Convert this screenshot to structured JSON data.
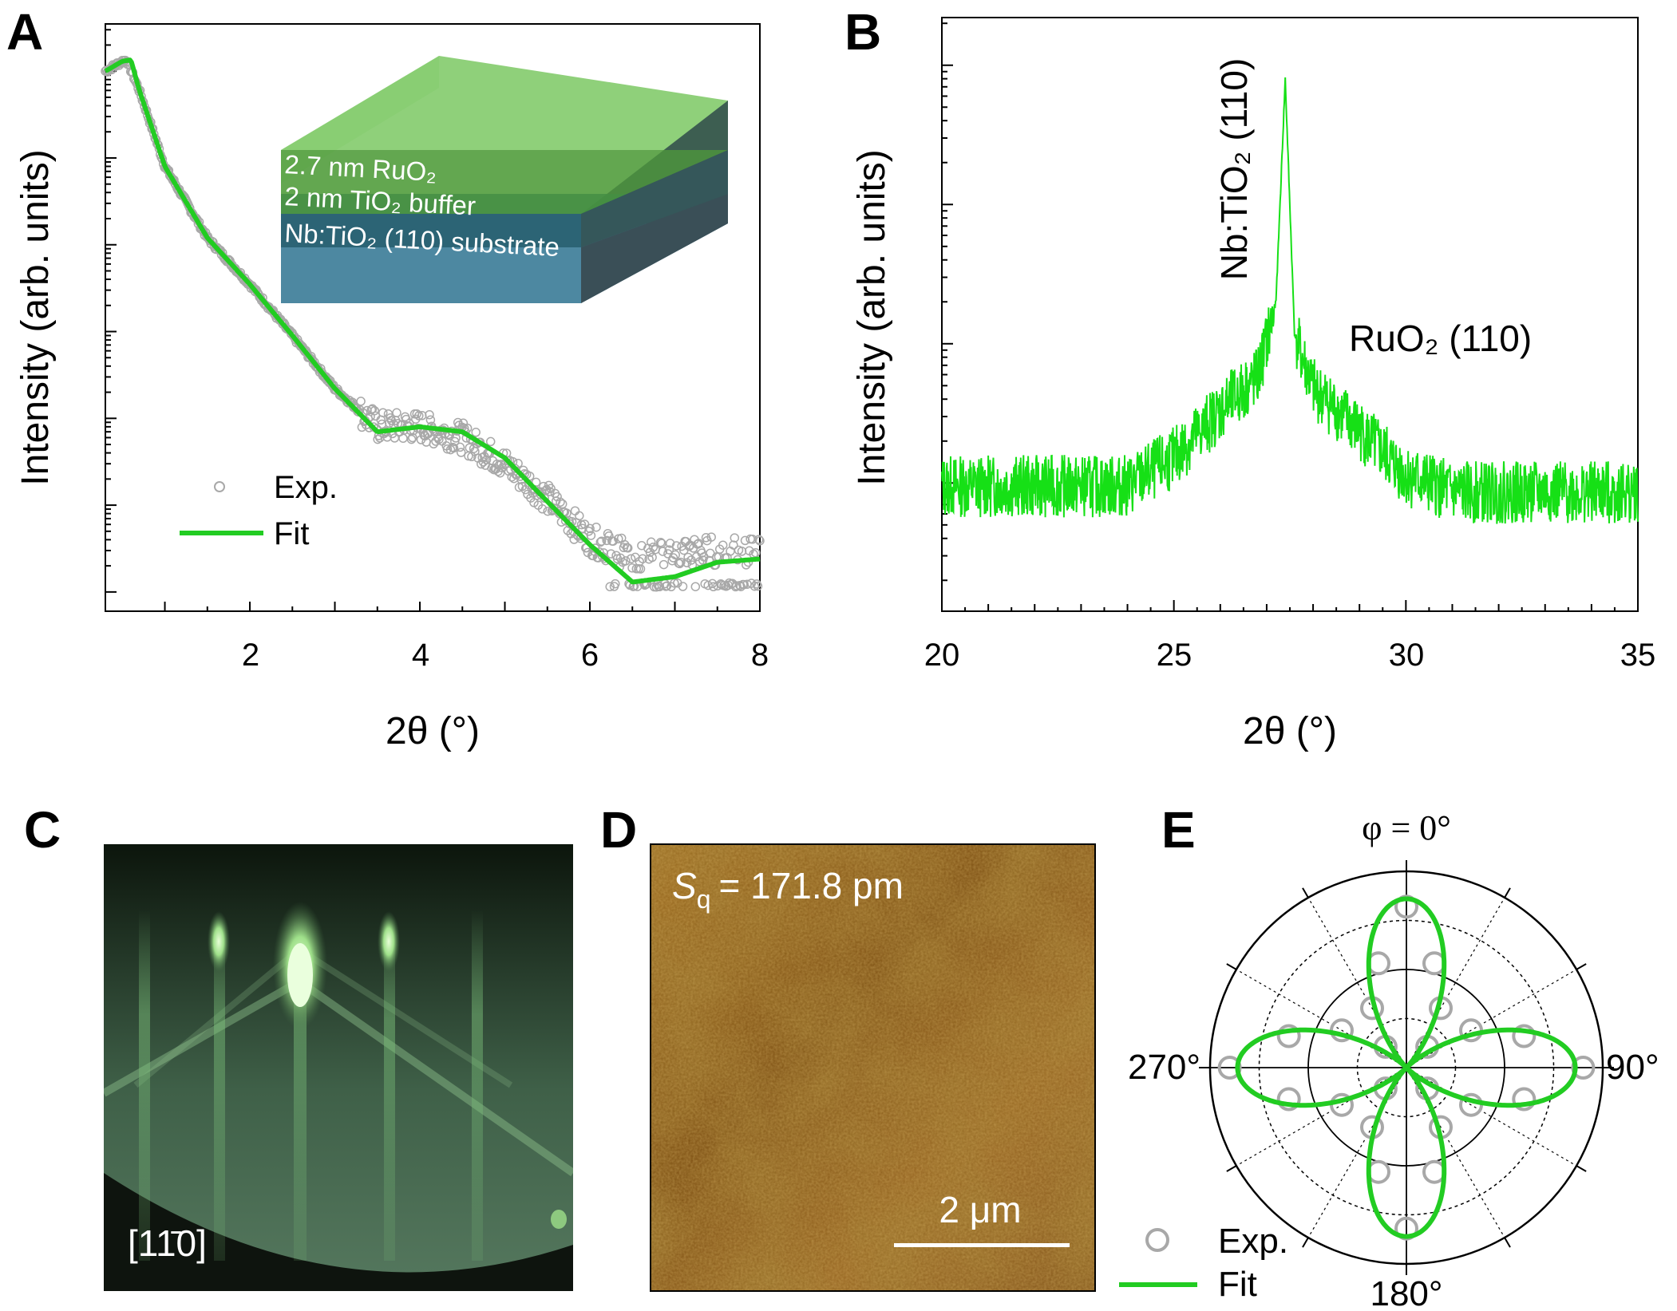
{
  "panel_labels": [
    "A",
    "B",
    "C",
    "D",
    "E"
  ],
  "colors": {
    "fit": "#22cc22",
    "exp": "#a8a8a8",
    "xrd": "#16e016",
    "rheed_bg": "#0e140e",
    "afm": "#8a5a14"
  },
  "panelA": {
    "ylabel": "Intensity (arb. units)",
    "xlabel": "2θ (°)",
    "xticks": [
      "2",
      "4",
      "6",
      "8"
    ],
    "legend": {
      "exp": "Exp.",
      "fit": "Fit"
    },
    "inset": {
      "layer_ruo2": "2.7 nm RuO₂",
      "layer_buffer": "2 nm TiO₂ buffer",
      "layer_substrate": "Nb:TiO₂ (110) substrate"
    }
  },
  "panelB": {
    "ylabel": "Intensity (arb. units)",
    "xlabel": "2θ (°)",
    "xticks": [
      "20",
      "25",
      "30",
      "35"
    ],
    "annot_substrate": "Nb:TiO₂ (110)",
    "annot_film": "RuO₂ (110)"
  },
  "panelC": {
    "label": "[11̄0]"
  },
  "panelD": {
    "sq_label": "S",
    "sq_sub": "q",
    "sq_value": "= 171.8 pm",
    "scalebar": "2 μm"
  },
  "panelE": {
    "label_top": "φ = 0°",
    "label_right": "90°",
    "label_bottom": "180°",
    "label_left": "270°",
    "legend": {
      "exp": "Exp.",
      "fit": "Fit"
    }
  },
  "chart_data": [
    {
      "type": "scatter",
      "title": "",
      "xlabel": "2θ (°)",
      "ylabel": "Intensity (arb. units)",
      "xlim": [
        0.3,
        8
      ],
      "yscale": "log",
      "series": [
        {
          "name": "Exp.",
          "style": "open-circles",
          "x": [
            0.3,
            0.5,
            0.55,
            0.7,
            1.0,
            1.5,
            2.0,
            2.5,
            3.0,
            3.5,
            4.0,
            4.5,
            5.0,
            5.5,
            6.0,
            6.5,
            7.0,
            7.5,
            8.0
          ],
          "y": [
            1.0,
            1.3,
            1.35,
            0.6,
            0.08,
            0.012,
            0.0035,
            0.0009,
            0.00022,
            8e-05,
            8e-05,
            6e-05,
            3e-05,
            1.2e-05,
            4e-06,
            2.5e-06,
            3e-06,
            3e-06,
            3e-06
          ]
        },
        {
          "name": "Fit",
          "style": "line",
          "x": [
            0.3,
            0.5,
            0.6,
            0.7,
            1.0,
            1.5,
            2.0,
            2.5,
            3.0,
            3.5,
            4.0,
            4.5,
            5.0,
            5.5,
            6.0,
            6.5,
            7.0,
            7.5,
            8.0
          ],
          "y": [
            1.0,
            1.3,
            1.35,
            0.6,
            0.08,
            0.012,
            0.0035,
            0.0009,
            0.00022,
            7e-05,
            8e-05,
            7e-05,
            3.5e-05,
            1.1e-05,
            3.5e-06,
            1.3e-06,
            1.5e-06,
            2.2e-06,
            2.4e-06
          ]
        }
      ]
    },
    {
      "type": "line",
      "title": "",
      "xlabel": "2θ (°)",
      "ylabel": "Intensity (arb. units)",
      "xlim": [
        20,
        35
      ],
      "yscale": "log",
      "series": [
        {
          "name": "",
          "x": [
            20,
            22,
            24,
            25,
            26,
            26.8,
            27.2,
            27.4,
            27.6,
            28,
            29,
            30,
            31,
            33,
            35
          ],
          "y": [
            1.0,
            1.0,
            1.0,
            1.6,
            3.5,
            6.0,
            20,
            800,
            12,
            5,
            2.5,
            1.2,
            0.9,
            0.9,
            0.9
          ]
        }
      ]
    },
    {
      "type": "polar",
      "title": "",
      "theta_labels": [
        "0°",
        "90°",
        "180°",
        "270°"
      ],
      "series": [
        {
          "name": "Exp.",
          "style": "open-circles",
          "theta": [
            0,
            15,
            30,
            45,
            60,
            75,
            90,
            105,
            120,
            135,
            150,
            165,
            180,
            195,
            210,
            225,
            240,
            255,
            270,
            285,
            300,
            315,
            330,
            345
          ],
          "r": [
            0.82,
            0.55,
            0.35,
            0.15,
            0.38,
            0.62,
            0.9,
            0.62,
            0.38,
            0.15,
            0.35,
            0.55,
            0.82,
            0.55,
            0.35,
            0.15,
            0.38,
            0.62,
            0.9,
            0.62,
            0.38,
            0.15,
            0.35,
            0.55
          ]
        },
        {
          "name": "Fit",
          "style": "line",
          "model": "r = 0.85 * |cos(2φ)|^1.6 (four-fold lobes)"
        }
      ]
    }
  ]
}
